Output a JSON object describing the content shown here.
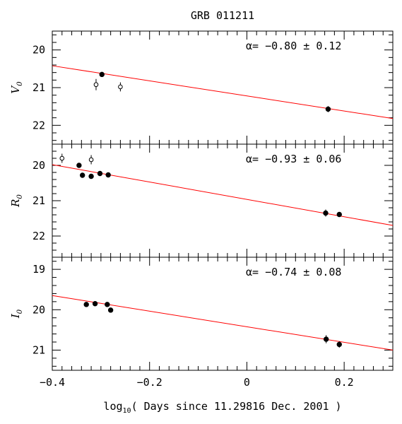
{
  "chart_data": {
    "type": "scatter",
    "title": "GRB 011211",
    "xlabel": {
      "pre": "log",
      "sub": "10",
      "post": "( Days since 11.29816 Dec. 2001 )"
    },
    "xlim": [
      -0.4,
      0.3
    ],
    "x_ticks": [
      -0.4,
      -0.2,
      0,
      0.2
    ],
    "x_tick_labels": [
      "−0.4",
      "−0.2",
      "0",
      "0.2"
    ],
    "y_inverted": true,
    "panels": [
      {
        "id": "V",
        "ylabel_main": "V",
        "ylabel_sub": "0",
        "ylim": [
          19.5,
          22.5
        ],
        "y_ticks": [
          20,
          21,
          22
        ],
        "alpha_text": {
          "prefix": "α= ",
          "value": "−0.80",
          "pm": "±",
          "error": "0.12"
        },
        "fit_line": {
          "x": [
            -0.4,
            0.3
          ],
          "y": [
            20.42,
            21.82
          ]
        },
        "points": [
          {
            "x": -0.298,
            "y": 20.65,
            "yerr": 0.06,
            "filled": true
          },
          {
            "x": -0.31,
            "y": 20.92,
            "yerr": 0.15,
            "filled": false
          },
          {
            "x": -0.26,
            "y": 20.98,
            "yerr": 0.12,
            "filled": false
          },
          {
            "x": 0.167,
            "y": 21.57,
            "yerr": 0.08,
            "filled": true
          }
        ]
      },
      {
        "id": "R",
        "ylabel_main": "R",
        "ylabel_sub": "0",
        "ylim": [
          19.4,
          22.6
        ],
        "y_ticks": [
          20,
          21,
          22
        ],
        "alpha_text": {
          "prefix": "α= ",
          "value": "−0.93",
          "pm": "±",
          "error": "0.06"
        },
        "fit_line": {
          "x": [
            -0.4,
            0.3
          ],
          "y": [
            19.98,
            21.7
          ]
        },
        "points": [
          {
            "x": -0.38,
            "y": 19.8,
            "yerr": 0.13,
            "filled": false
          },
          {
            "x": -0.32,
            "y": 19.84,
            "yerr": 0.13,
            "filled": false
          },
          {
            "x": -0.345,
            "y": 20.0,
            "yerr": 0.06,
            "filled": true
          },
          {
            "x": -0.338,
            "y": 20.28,
            "yerr": 0.04,
            "filled": true
          },
          {
            "x": -0.32,
            "y": 20.31,
            "yerr": 0.04,
            "filled": true
          },
          {
            "x": -0.302,
            "y": 20.23,
            "yerr": 0.04,
            "filled": true
          },
          {
            "x": -0.285,
            "y": 20.27,
            "yerr": 0.04,
            "filled": true
          },
          {
            "x": 0.162,
            "y": 21.35,
            "yerr": 0.1,
            "filled": true
          },
          {
            "x": 0.19,
            "y": 21.39,
            "yerr": 0.06,
            "filled": true
          }
        ]
      },
      {
        "id": "I",
        "ylabel_main": "I",
        "ylabel_sub": "0",
        "ylim": [
          18.7,
          21.5
        ],
        "y_ticks": [
          19,
          20,
          21
        ],
        "alpha_text": {
          "prefix": "α= ",
          "value": "−0.74",
          "pm": "±",
          "error": "0.08"
        },
        "fit_line": {
          "x": [
            -0.4,
            0.3
          ],
          "y": [
            19.65,
            21.0
          ]
        },
        "points": [
          {
            "x": -0.33,
            "y": 19.87,
            "yerr": 0.05,
            "filled": true
          },
          {
            "x": -0.312,
            "y": 19.85,
            "yerr": 0.05,
            "filled": true
          },
          {
            "x": -0.287,
            "y": 19.87,
            "yerr": 0.05,
            "filled": true
          },
          {
            "x": -0.28,
            "y": 20.01,
            "yerr": 0.05,
            "filled": true
          },
          {
            "x": 0.163,
            "y": 20.73,
            "yerr": 0.1,
            "filled": true
          },
          {
            "x": 0.19,
            "y": 20.86,
            "yerr": 0.08,
            "filled": true
          }
        ]
      }
    ],
    "fit_color": "#ff0000",
    "point_color": "#000000",
    "grid": false
  }
}
